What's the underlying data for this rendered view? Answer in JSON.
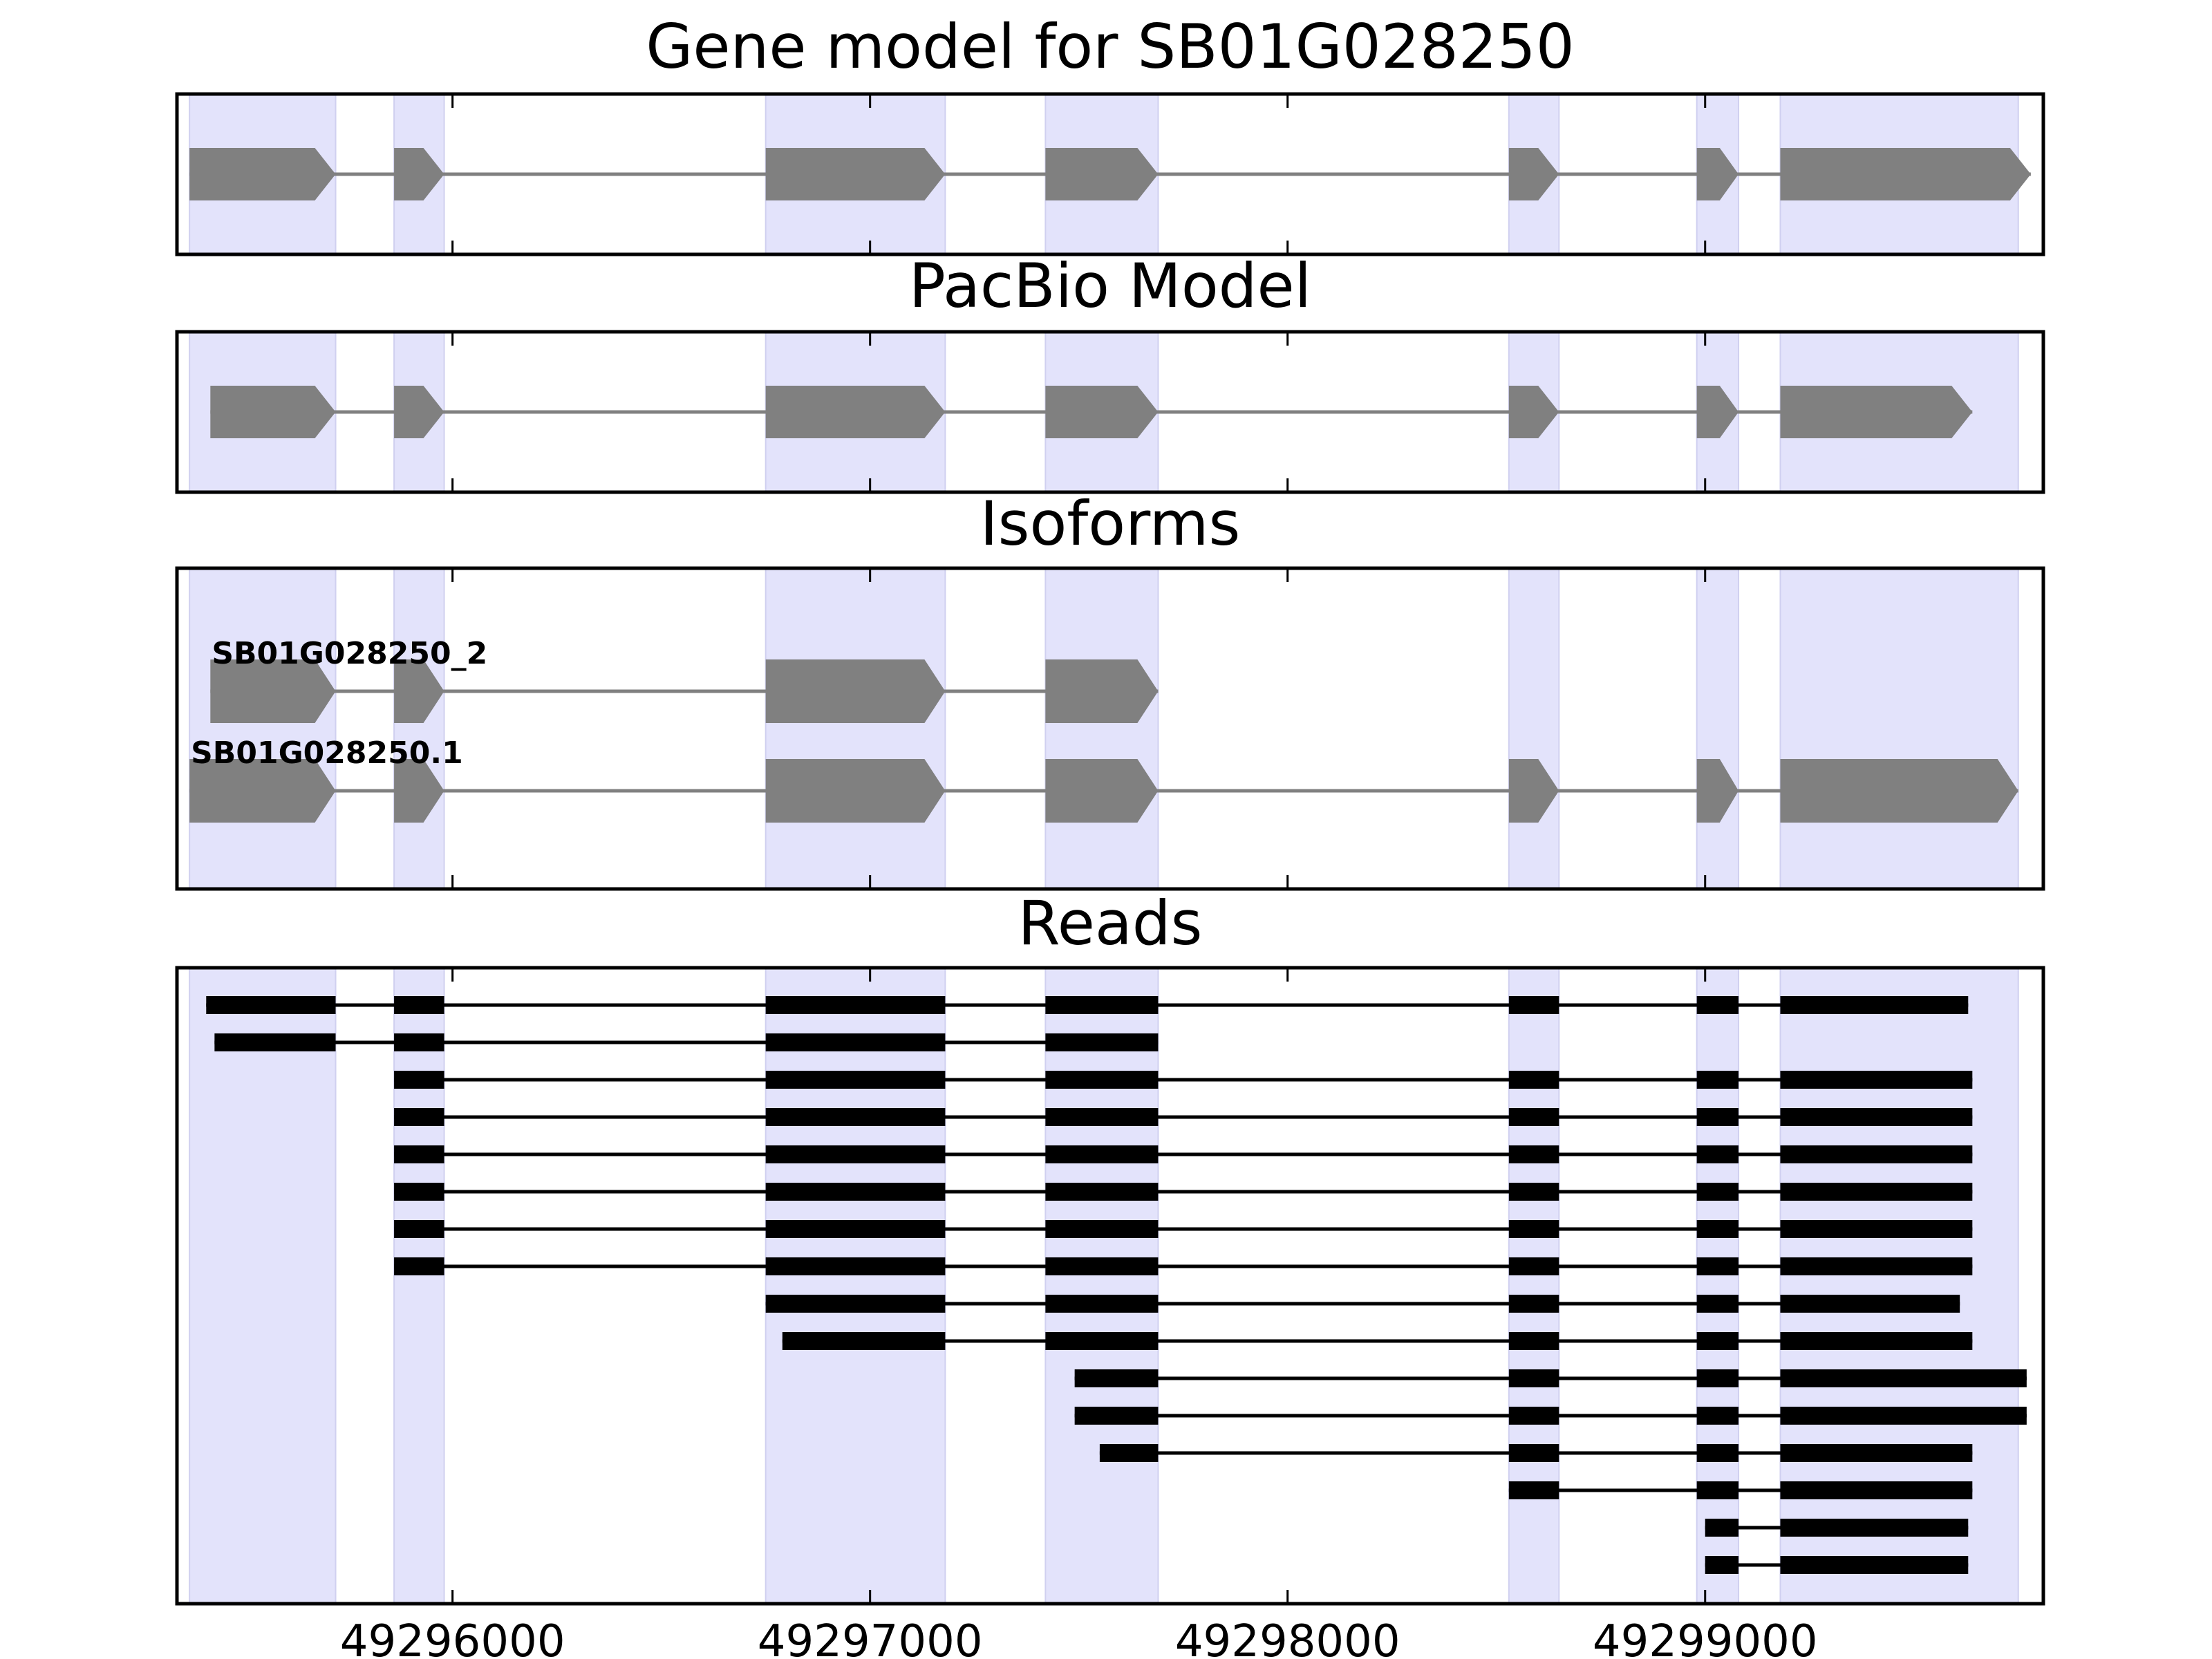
{
  "chart_data": {
    "type": "gene-track",
    "xlim": [
      49295340,
      49299810
    ],
    "xticks": [
      {
        "value": 49296000,
        "label": "49296000"
      },
      {
        "value": 49297000,
        "label": "49297000"
      },
      {
        "value": 49298000,
        "label": "49298000"
      },
      {
        "value": 49299000,
        "label": "49299000"
      }
    ],
    "highlight_color": "#e3e3fb",
    "feature_color": "#808080",
    "read_color": "#000000",
    "exon_regions": [
      [
        49295370,
        49295720
      ],
      [
        49295860,
        49295980
      ],
      [
        49296750,
        49297180
      ],
      [
        49297420,
        49297690
      ],
      [
        49298530,
        49298650
      ],
      [
        49298980,
        49299080
      ],
      [
        49299180,
        49299750
      ]
    ],
    "panels": [
      {
        "id": "gene-model",
        "title": "Gene model for SB01G028250",
        "kind": "model",
        "tracks": [
          {
            "label": "",
            "exons": [
              [
                49295370,
                49295720
              ],
              [
                49295860,
                49295980
              ],
              [
                49296750,
                49297180
              ],
              [
                49297420,
                49297690
              ],
              [
                49298530,
                49298650
              ],
              [
                49298980,
                49299080
              ],
              [
                49299180,
                49299780
              ]
            ]
          }
        ]
      },
      {
        "id": "pacbio-model",
        "title": "PacBio Model",
        "kind": "model",
        "tracks": [
          {
            "label": "",
            "exons": [
              [
                49295420,
                49295720
              ],
              [
                49295860,
                49295980
              ],
              [
                49296750,
                49297180
              ],
              [
                49297420,
                49297690
              ],
              [
                49298530,
                49298650
              ],
              [
                49298980,
                49299080
              ],
              [
                49299180,
                49299640
              ]
            ]
          }
        ]
      },
      {
        "id": "isoforms",
        "title": "Isoforms",
        "kind": "isoforms",
        "tracks": [
          {
            "label": "SB01G028250_2",
            "exons": [
              [
                49295420,
                49295720
              ],
              [
                49295860,
                49295980
              ],
              [
                49296750,
                49297180
              ],
              [
                49297420,
                49297690
              ]
            ]
          },
          {
            "label": "SB01G028250.1",
            "exons": [
              [
                49295370,
                49295720
              ],
              [
                49295860,
                49295980
              ],
              [
                49296750,
                49297180
              ],
              [
                49297420,
                49297690
              ],
              [
                49298530,
                49298650
              ],
              [
                49298980,
                49299080
              ],
              [
                49299180,
                49299750
              ]
            ]
          }
        ]
      },
      {
        "id": "reads",
        "title": "Reads",
        "kind": "reads",
        "tracks": [
          {
            "exons": [
              [
                49295410,
                49295720
              ],
              [
                49295860,
                49295980
              ],
              [
                49296750,
                49297180
              ],
              [
                49297420,
                49297690
              ],
              [
                49298530,
                49298650
              ],
              [
                49298980,
                49299080
              ],
              [
                49299180,
                49299630
              ]
            ]
          },
          {
            "exons": [
              [
                49295430,
                49295720
              ],
              [
                49295860,
                49295980
              ],
              [
                49296750,
                49297180
              ],
              [
                49297420,
                49297690
              ]
            ]
          },
          {
            "exons": [
              [
                49295860,
                49295980
              ],
              [
                49296750,
                49297180
              ],
              [
                49297420,
                49297690
              ],
              [
                49298530,
                49298650
              ],
              [
                49298980,
                49299080
              ],
              [
                49299180,
                49299640
              ]
            ]
          },
          {
            "exons": [
              [
                49295860,
                49295980
              ],
              [
                49296750,
                49297180
              ],
              [
                49297420,
                49297690
              ],
              [
                49298530,
                49298650
              ],
              [
                49298980,
                49299080
              ],
              [
                49299180,
                49299640
              ]
            ]
          },
          {
            "exons": [
              [
                49295860,
                49295980
              ],
              [
                49296750,
                49297180
              ],
              [
                49297420,
                49297690
              ],
              [
                49298530,
                49298650
              ],
              [
                49298980,
                49299080
              ],
              [
                49299180,
                49299640
              ]
            ]
          },
          {
            "exons": [
              [
                49295860,
                49295980
              ],
              [
                49296750,
                49297180
              ],
              [
                49297420,
                49297690
              ],
              [
                49298530,
                49298650
              ],
              [
                49298980,
                49299080
              ],
              [
                49299180,
                49299640
              ]
            ]
          },
          {
            "exons": [
              [
                49295860,
                49295980
              ],
              [
                49296750,
                49297180
              ],
              [
                49297420,
                49297690
              ],
              [
                49298530,
                49298650
              ],
              [
                49298980,
                49299080
              ],
              [
                49299180,
                49299640
              ]
            ]
          },
          {
            "exons": [
              [
                49295860,
                49295980
              ],
              [
                49296750,
                49297180
              ],
              [
                49297420,
                49297690
              ],
              [
                49298530,
                49298650
              ],
              [
                49298980,
                49299080
              ],
              [
                49299180,
                49299640
              ]
            ]
          },
          {
            "exons": [
              [
                49296750,
                49297180
              ],
              [
                49297420,
                49297690
              ],
              [
                49298530,
                49298650
              ],
              [
                49298980,
                49299080
              ],
              [
                49299180,
                49299610
              ]
            ]
          },
          {
            "exons": [
              [
                49296790,
                49297180
              ],
              [
                49297420,
                49297690
              ],
              [
                49298530,
                49298650
              ],
              [
                49298980,
                49299080
              ],
              [
                49299180,
                49299640
              ]
            ]
          },
          {
            "exons": [
              [
                49297490,
                49297690
              ],
              [
                49298530,
                49298650
              ],
              [
                49298980,
                49299080
              ],
              [
                49299180,
                49299770
              ]
            ]
          },
          {
            "exons": [
              [
                49297490,
                49297690
              ],
              [
                49298530,
                49298650
              ],
              [
                49298980,
                49299080
              ],
              [
                49299180,
                49299770
              ]
            ]
          },
          {
            "exons": [
              [
                49297550,
                49297690
              ],
              [
                49298530,
                49298650
              ],
              [
                49298980,
                49299080
              ],
              [
                49299180,
                49299640
              ]
            ]
          },
          {
            "exons": [
              [
                49298530,
                49298650
              ],
              [
                49298980,
                49299080
              ],
              [
                49299180,
                49299640
              ]
            ]
          },
          {
            "exons": [
              [
                49299000,
                49299080
              ],
              [
                49299180,
                49299630
              ]
            ]
          },
          {
            "exons": [
              [
                49299000,
                49299080
              ],
              [
                49299180,
                49299630
              ]
            ]
          }
        ]
      }
    ]
  }
}
